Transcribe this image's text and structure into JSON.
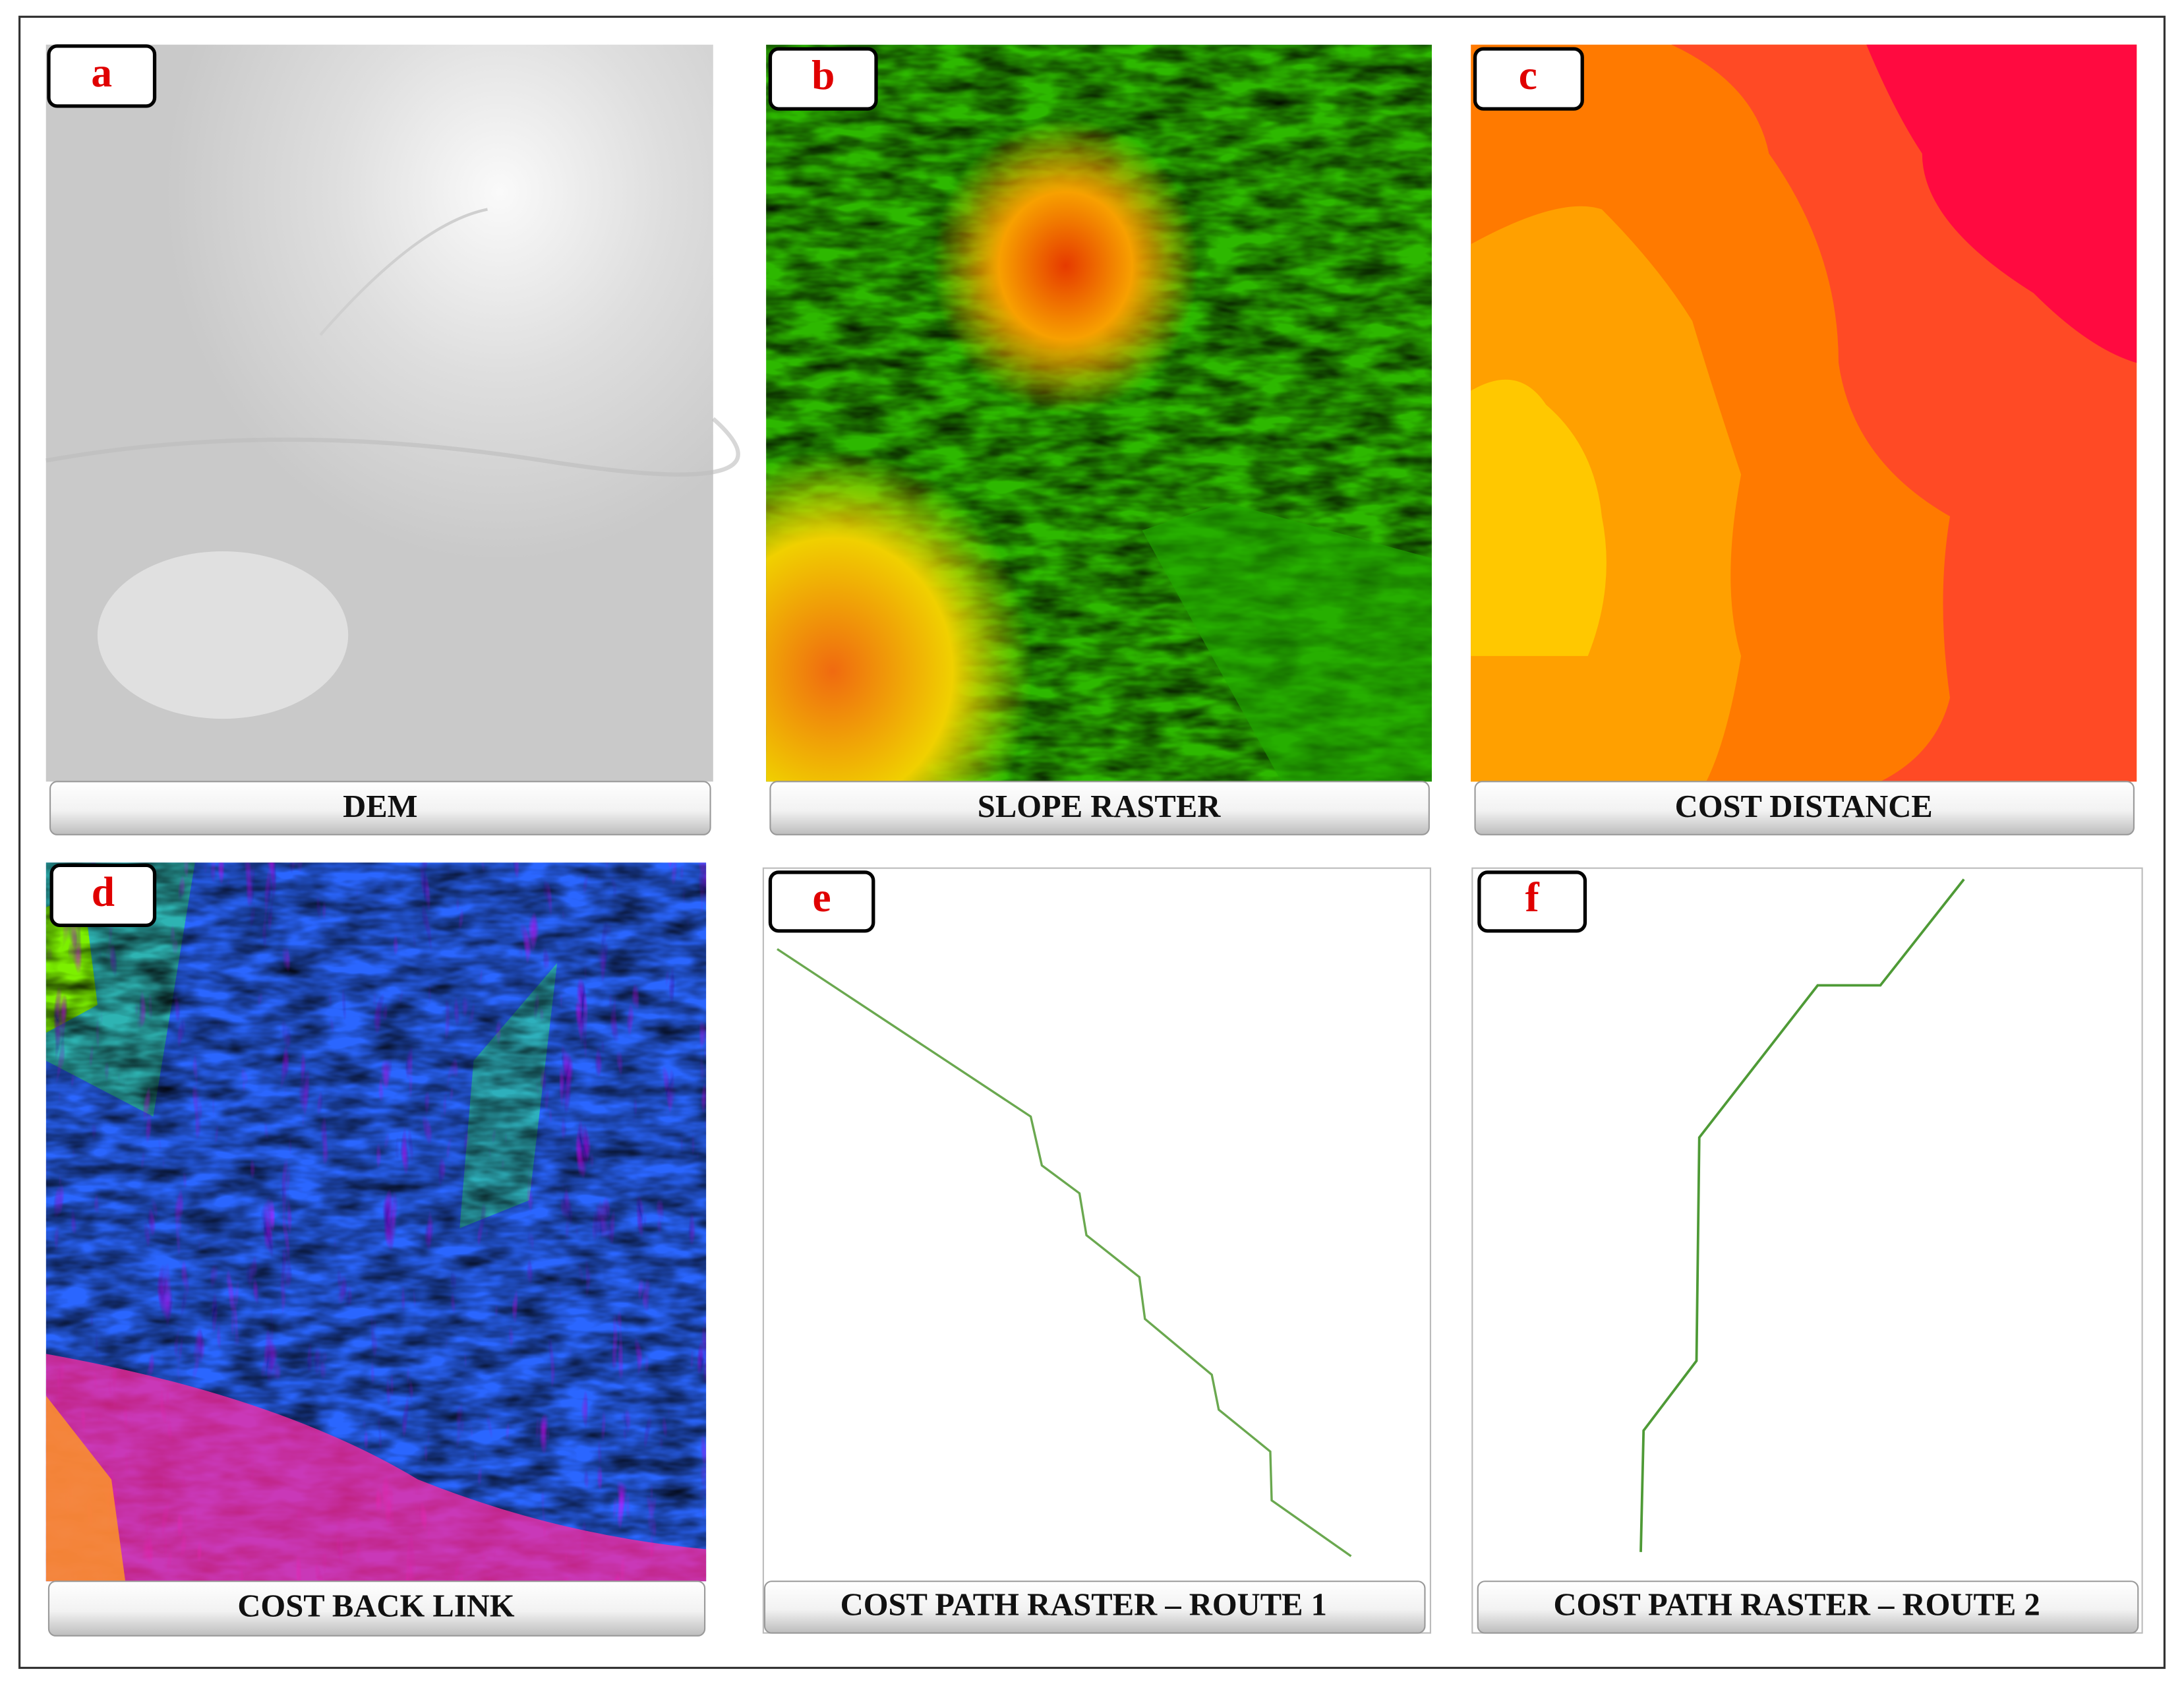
{
  "panels": [
    {
      "letter": "a",
      "caption": "DEM"
    },
    {
      "letter": "b",
      "caption": "SLOPE RASTER"
    },
    {
      "letter": "c",
      "caption": "COST DISTANCE"
    },
    {
      "letter": "d",
      "caption": "COST BACK LINK"
    },
    {
      "letter": "e",
      "caption": "COST PATH RASTER – ROUTE 1"
    },
    {
      "letter": "f",
      "caption": "COST PATH RASTER – ROUTE 2"
    }
  ]
}
